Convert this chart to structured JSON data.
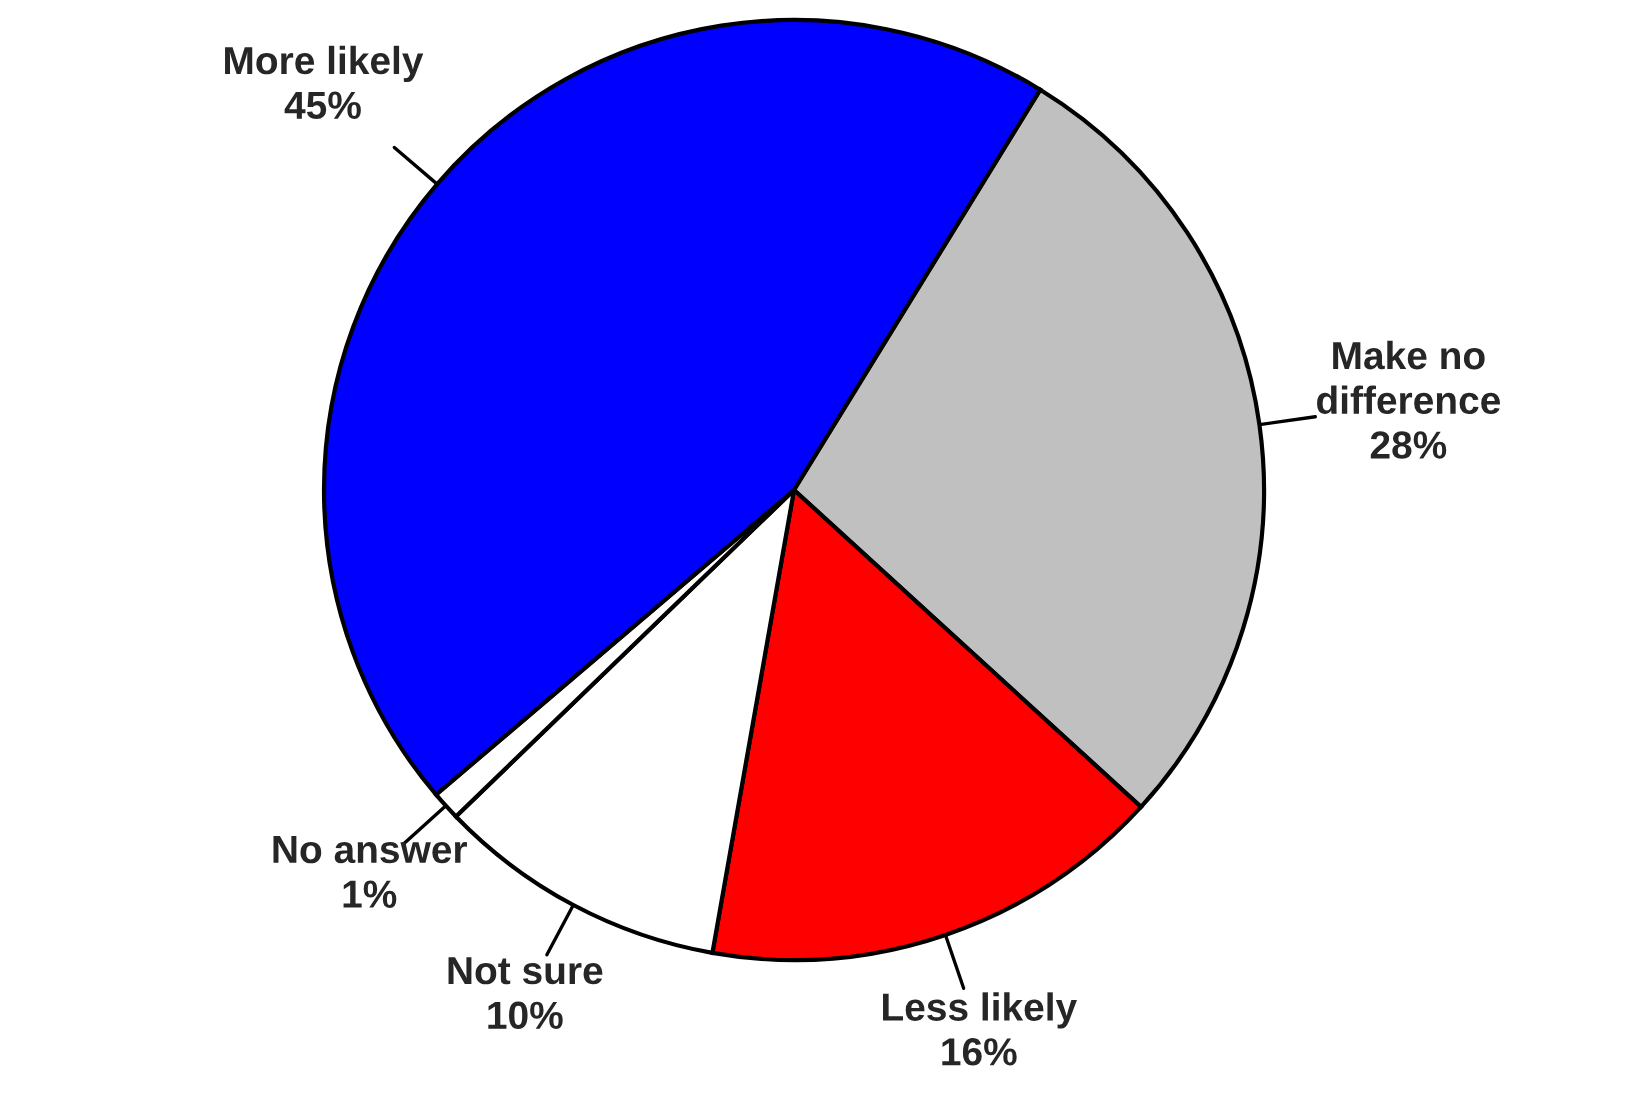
{
  "chart_data": {
    "type": "pie",
    "categories": [
      "Make no\ndifference",
      "Less likely",
      "Not sure",
      "No answer",
      "More likely"
    ],
    "values": [
      28,
      16,
      10,
      1,
      45
    ],
    "value_labels": [
      "28%",
      "16%",
      "10%",
      "1%",
      "45%"
    ],
    "colors": [
      "#c0c0c0",
      "#ff0000",
      "#ffffff",
      "#ffffff",
      "#0000ff"
    ]
  }
}
